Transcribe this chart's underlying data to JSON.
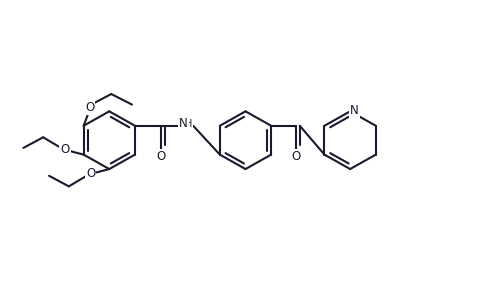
{
  "background_color": "#ffffff",
  "line_color": "#1a1a2e",
  "line_width": 1.5,
  "figsize": [
    4.95,
    2.9
  ],
  "dpi": 100,
  "font_size": 8.5,
  "xlim": [
    0,
    10
  ],
  "ylim": [
    0,
    6
  ]
}
